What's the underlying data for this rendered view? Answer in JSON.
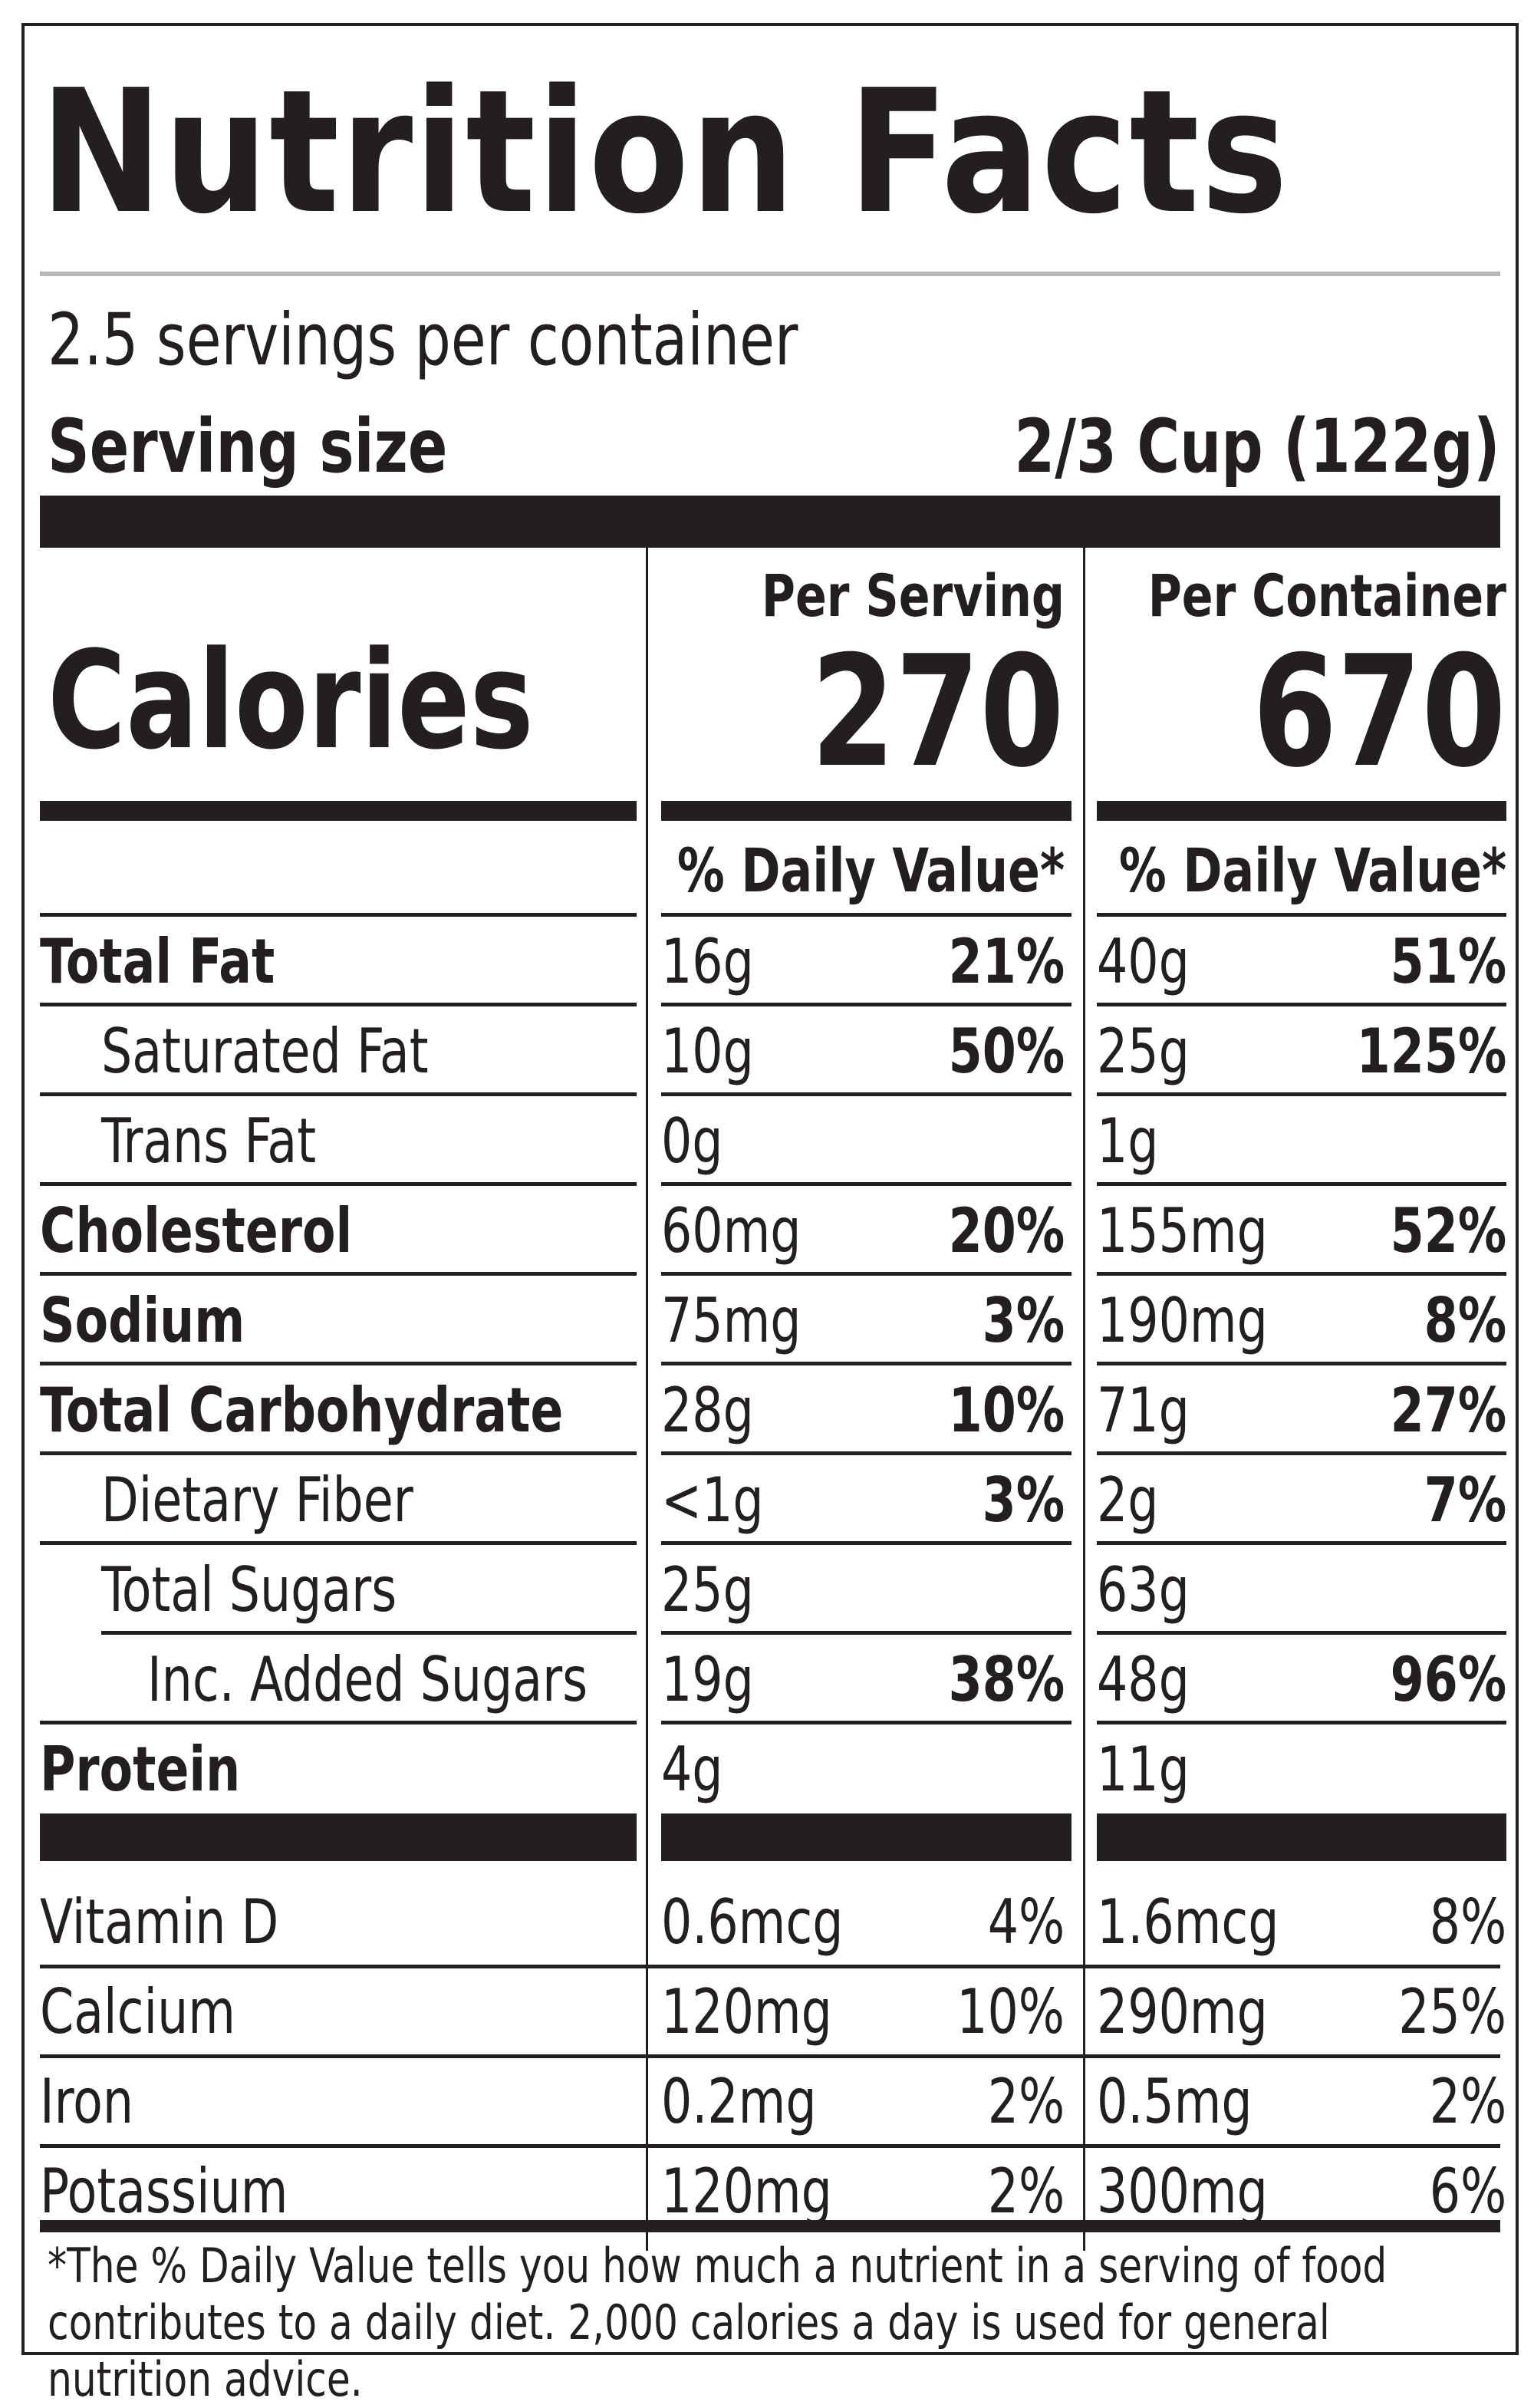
{
  "title": "Nutrition Facts",
  "servings_per_container": "2.5 servings per container",
  "serving_size": {
    "label": "Serving size",
    "value": "2/3 Cup (122g)"
  },
  "calories": {
    "label": "Calories",
    "per_serving_label": "Per Serving",
    "per_serving": "270",
    "per_container_label": "Per Container",
    "per_container": "670"
  },
  "daily_value_header": "% Daily Value*",
  "nutrients": [
    {
      "name": "Total Fat",
      "bold": true,
      "indent": 0,
      "serving_amount": "16g",
      "serving_dv": "21%",
      "container_amount": "40g",
      "container_dv": "51%"
    },
    {
      "name": "Saturated Fat",
      "bold": false,
      "indent": 1,
      "serving_amount": "10g",
      "serving_dv": "50%",
      "container_amount": "25g",
      "container_dv": "125%"
    },
    {
      "name": "Trans Fat",
      "bold": false,
      "indent": 1,
      "serving_amount": "0g",
      "serving_dv": "",
      "container_amount": "1g",
      "container_dv": ""
    },
    {
      "name": "Cholesterol",
      "bold": true,
      "indent": 0,
      "serving_amount": "60mg",
      "serving_dv": "20%",
      "container_amount": "155mg",
      "container_dv": "52%"
    },
    {
      "name": "Sodium",
      "bold": true,
      "indent": 0,
      "serving_amount": "75mg",
      "serving_dv": "3%",
      "container_amount": "190mg",
      "container_dv": "8%"
    },
    {
      "name": "Total Carbohydrate",
      "bold": true,
      "indent": 0,
      "serving_amount": "28g",
      "serving_dv": "10%",
      "container_amount": "71g",
      "container_dv": "27%"
    },
    {
      "name": "Dietary Fiber",
      "bold": false,
      "indent": 1,
      "serving_amount": "<1g",
      "serving_dv": "3%",
      "container_amount": "2g",
      "container_dv": "7%"
    },
    {
      "name": "Total Sugars",
      "bold": false,
      "indent": 1,
      "serving_amount": "25g",
      "serving_dv": "",
      "container_amount": "63g",
      "container_dv": ""
    },
    {
      "name": "Inc. Added Sugars",
      "bold": false,
      "indent": 2,
      "serving_amount": "19g",
      "serving_dv": "38%",
      "container_amount": "48g",
      "container_dv": "96%"
    },
    {
      "name": "Protein",
      "bold": true,
      "indent": 0,
      "serving_amount": "4g",
      "serving_dv": "",
      "container_amount": "11g",
      "container_dv": ""
    }
  ],
  "vitamins": [
    {
      "name": "Vitamin D",
      "serving_amount": "0.6mcg",
      "serving_dv": "4%",
      "container_amount": "1.6mcg",
      "container_dv": "8%"
    },
    {
      "name": "Calcium",
      "serving_amount": "120mg",
      "serving_dv": "10%",
      "container_amount": "290mg",
      "container_dv": "25%"
    },
    {
      "name": "Iron",
      "serving_amount": "0.2mg",
      "serving_dv": "2%",
      "container_amount": "0.5mg",
      "container_dv": "2%"
    },
    {
      "name": "Potassium",
      "serving_amount": "120mg",
      "serving_dv": "2%",
      "container_amount": "300mg",
      "container_dv": "6%"
    }
  ],
  "footnote": "*The % Daily Value tells you how much a nutrient in a serving of food contributes to a daily diet. 2,000 calories a day is used for general nutrition advice."
}
